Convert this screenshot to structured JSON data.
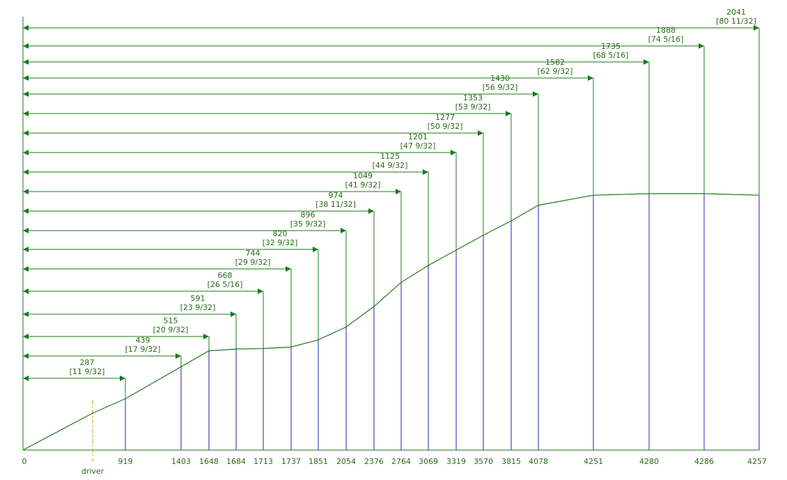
{
  "colors": {
    "green": "#1a7a1a",
    "blue": "#1f1fc0",
    "driver": "#b0a000",
    "text": "#2a6a1a"
  },
  "origin_label": "0",
  "driver_label": "driver",
  "stations": [
    {
      "label": "919",
      "width": "287",
      "inch": "[11 9/32]",
      "profile": 0.2
    },
    {
      "label": "1403",
      "width": "439",
      "inch": "[17 9/32]",
      "profile": 0.325
    },
    {
      "label": "1648",
      "width": "515",
      "inch": "[20 9/32]",
      "profile": 0.387
    },
    {
      "label": "1684",
      "width": "591",
      "inch": "[23 9/32]",
      "profile": 0.394
    },
    {
      "label": "1713",
      "width": "668",
      "inch": "[26 5/16]",
      "profile": 0.396
    },
    {
      "label": "1737",
      "width": "744",
      "inch": "[29 9/32]",
      "profile": 0.402
    },
    {
      "label": "1851",
      "width": "820",
      "inch": "[32 9/32]",
      "profile": 0.43
    },
    {
      "label": "2054",
      "width": "896",
      "inch": "[35 9/32]",
      "profile": 0.48
    },
    {
      "label": "2376",
      "width": "974",
      "inch": "[38 11/32]",
      "profile": 0.56
    },
    {
      "label": "2764",
      "width": "1049",
      "inch": "[41 9/32]",
      "profile": 0.654
    },
    {
      "label": "3069",
      "width": "1125",
      "inch": "[44 9/32]",
      "profile": 0.72
    },
    {
      "label": "3319",
      "width": "1201",
      "inch": "[47 9/32]",
      "profile": 0.78
    },
    {
      "label": "3570",
      "width": "1277",
      "inch": "[50 9/32]",
      "profile": 0.838
    },
    {
      "label": "3815",
      "width": "1353",
      "inch": "[53 9/32]",
      "profile": 0.894
    },
    {
      "label": "4078",
      "width": "1430",
      "inch": "[56 9/32]",
      "profile": 0.955
    },
    {
      "label": "4251",
      "width": "1582",
      "inch": "[62 9/32]",
      "profile": 0.994
    },
    {
      "label": "4280",
      "width": "1735",
      "inch": "[68 5/16]",
      "profile": 1.0
    },
    {
      "label": "4286",
      "width": "1888",
      "inch": "[74 5/16]",
      "profile": 1.0
    },
    {
      "label": "4257",
      "width": "2041",
      "inch": "[80 11/32]",
      "profile": 0.994
    }
  ]
}
